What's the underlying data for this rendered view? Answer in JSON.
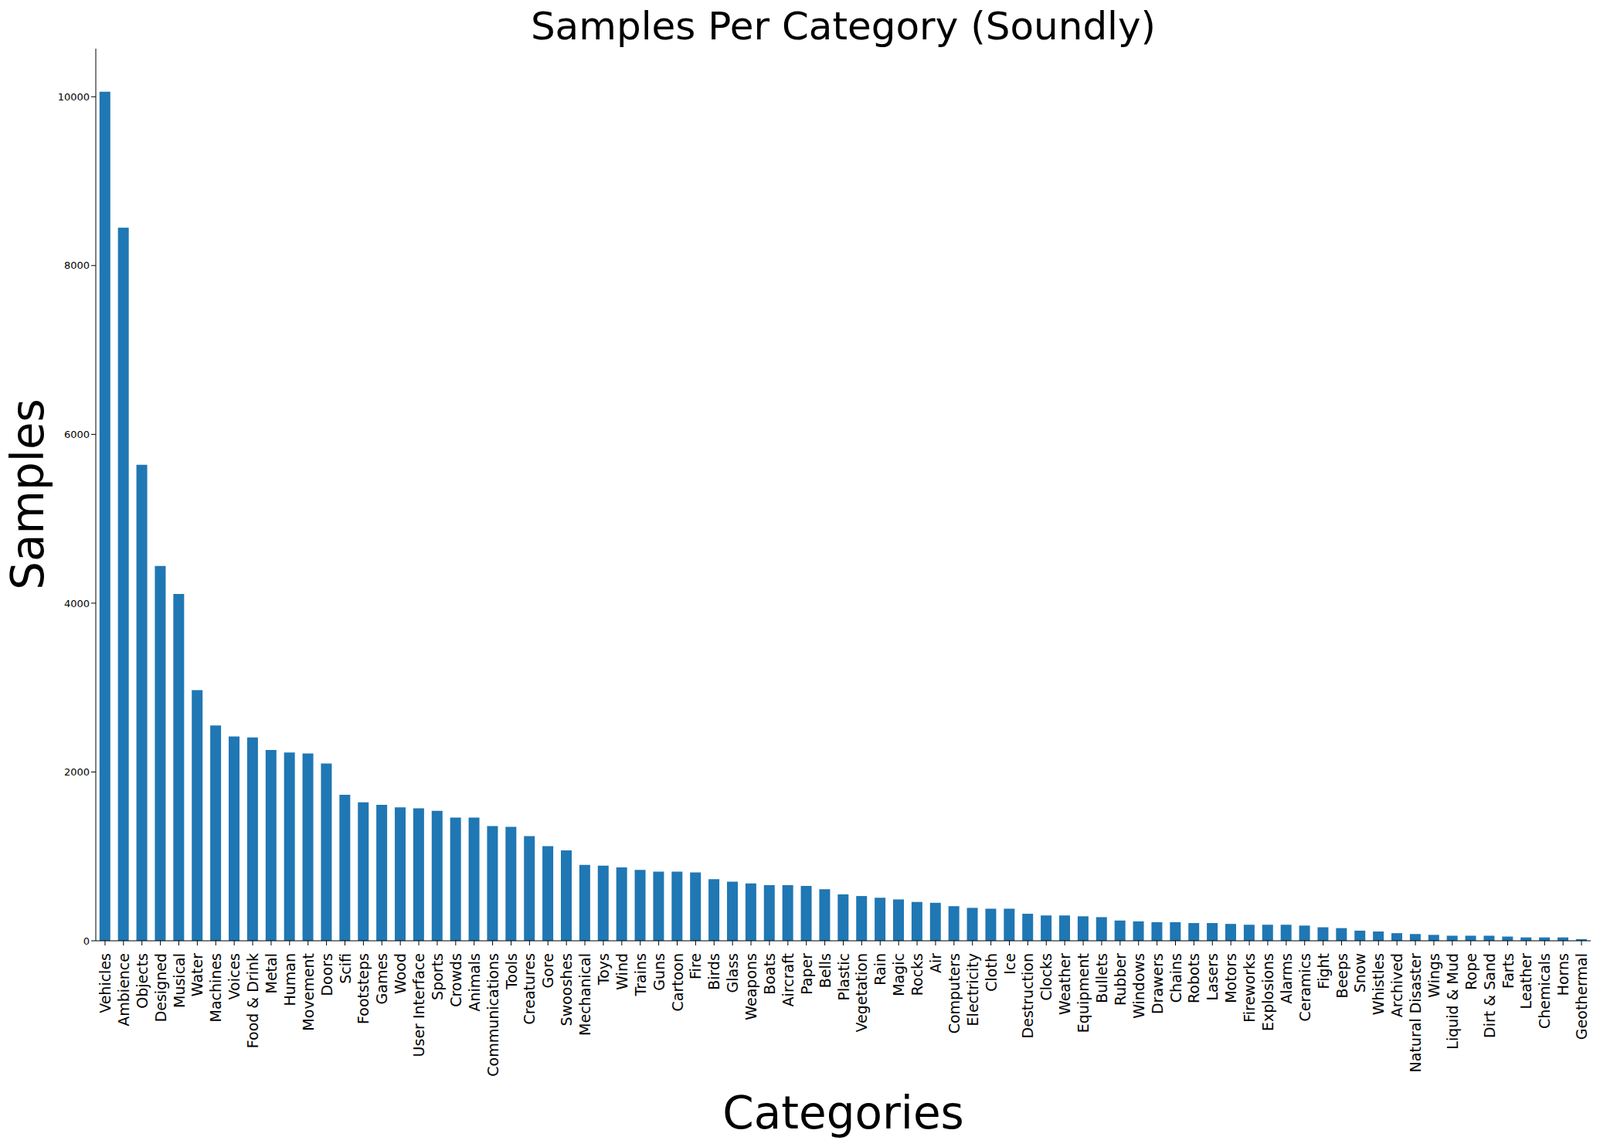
{
  "chart_data": {
    "type": "bar",
    "title": "Samples Per Category (Soundly)",
    "x_label": "Categories",
    "y_label": "Samples",
    "categories": [
      "Vehicles",
      "Ambience",
      "Objects",
      "Designed",
      "Musical",
      "Water",
      "Machines",
      "Voices",
      "Food & Drink",
      "Metal",
      "Human",
      "Movement",
      "Doors",
      "Scifi",
      "Footsteps",
      "Games",
      "Wood",
      "User Interface",
      "Sports",
      "Crowds",
      "Animals",
      "Communications",
      "Tools",
      "Creatures",
      "Gore",
      "Swooshes",
      "Mechanical",
      "Toys",
      "Wind",
      "Trains",
      "Guns",
      "Cartoon",
      "Fire",
      "Birds",
      "Glass",
      "Weapons",
      "Boats",
      "Aircraft",
      "Paper",
      "Bells",
      "Plastic",
      "Vegetation",
      "Rain",
      "Magic",
      "Rocks",
      "Air",
      "Computers",
      "Electricity",
      "Cloth",
      "Ice",
      "Destruction",
      "Clocks",
      "Weather",
      "Equipment",
      "Bullets",
      "Rubber",
      "Windows",
      "Drawers",
      "Chains",
      "Robots",
      "Lasers",
      "Motors",
      "Fireworks",
      "Explosions",
      "Alarms",
      "Ceramics",
      "Fight",
      "Beeps",
      "Snow",
      "Whistles",
      "Archived",
      "Natural Disaster",
      "Wings",
      "Liquid & Mud",
      "Rope",
      "Dirt & Sand",
      "Farts",
      "Leather",
      "Chemicals",
      "Horns",
      "Geothermal"
    ],
    "values": [
      10060,
      8450,
      5640,
      4440,
      4110,
      2970,
      2550,
      2420,
      2410,
      2260,
      2230,
      2220,
      2100,
      1730,
      1640,
      1610,
      1580,
      1570,
      1540,
      1460,
      1460,
      1360,
      1350,
      1240,
      1120,
      1070,
      900,
      890,
      870,
      840,
      820,
      820,
      810,
      730,
      700,
      680,
      660,
      660,
      650,
      610,
      550,
      530,
      510,
      490,
      460,
      450,
      410,
      390,
      380,
      380,
      320,
      300,
      300,
      290,
      280,
      240,
      230,
      220,
      220,
      210,
      210,
      200,
      190,
      190,
      190,
      180,
      160,
      150,
      120,
      110,
      90,
      80,
      70,
      60,
      60,
      60,
      50,
      40,
      40,
      40,
      20
    ],
    "color": "#1f77b4",
    "ylim": [
      0,
      10570
    ],
    "yticks": [
      0,
      2000,
      4000,
      6000,
      8000,
      10000
    ]
  }
}
